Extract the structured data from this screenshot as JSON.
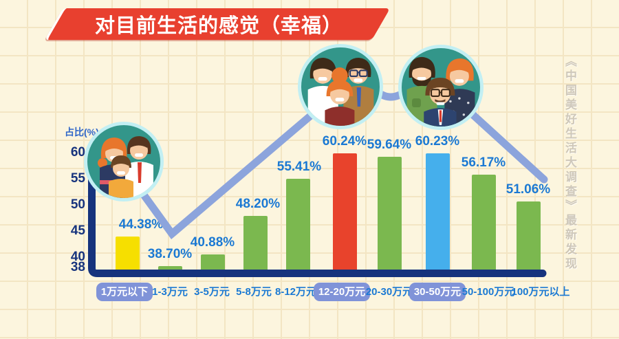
{
  "banner": {
    "title": "对目前生活的感觉（幸福）"
  },
  "watermark": {
    "text": "《中国美好生活大调查》最新发现"
  },
  "y_axis": {
    "title": "占比(%)",
    "ticks": [
      60,
      55,
      50,
      45,
      40,
      38
    ]
  },
  "chart_data": {
    "type": "bar",
    "title": "对目前生活的感觉（幸福）",
    "subtitle_watermark": "《中国美好生活大调查》最新发现",
    "xlabel": "",
    "ylabel": "占比(%)",
    "ylim": [
      38,
      62
    ],
    "yticks": [
      60,
      55,
      50,
      45,
      40,
      38
    ],
    "grid": "subtle background squares",
    "legend": "none",
    "categories": [
      "1万元以下",
      "1-3万元",
      "3-5万元",
      "5-8万元",
      "8-12万元",
      "12-20万元",
      "20-30万元",
      "30-50万元",
      "50-100万元",
      "100万元以上"
    ],
    "values": [
      44.38,
      38.7,
      40.88,
      48.2,
      55.41,
      60.24,
      59.64,
      60.23,
      56.17,
      51.06
    ],
    "value_labels": [
      "44.38%",
      "38.70%",
      "40.88%",
      "48.20%",
      "55.41%",
      "60.24%",
      "59.64%",
      "60.23%",
      "56.17%",
      "51.06%"
    ],
    "bar_colors": [
      "#F6DF00",
      "#7BB84F",
      "#7BB84F",
      "#7BB84F",
      "#7BB84F",
      "#E8432C",
      "#7BB84F",
      "#45AFEC",
      "#7BB84F",
      "#7BB84F"
    ],
    "highlighted_indices": [
      0,
      5,
      7
    ],
    "highlight_pill_color": "#8093D8",
    "trend_line_color": "#8CA4DC",
    "axis_color": "#16337D",
    "value_label_color": "#1B79D3",
    "background_color": "#FCF5DE",
    "banner_color": "#E8402F"
  },
  "icons": {
    "avatars": [
      "happy-family-parents-child-icon",
      "happy-family-three-adults-icon",
      "happy-family-elder-trio-icon"
    ]
  }
}
